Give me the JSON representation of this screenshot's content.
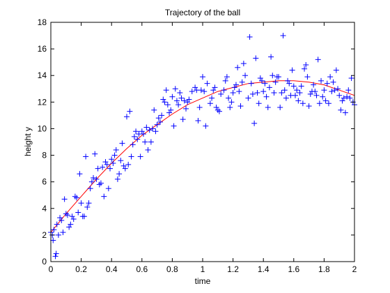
{
  "chart_data": {
    "type": "scatter",
    "title": "Trajectory of the ball",
    "xlabel": "time",
    "ylabel": "height y",
    "xlim": [
      0,
      2
    ],
    "ylim": [
      0,
      18
    ],
    "xticks": [
      "0",
      "0.2",
      "0.4",
      "0.6",
      "0.8",
      "1",
      "1.2",
      "1.4",
      "1.6",
      "1.8",
      "2"
    ],
    "yticks": [
      "0",
      "2",
      "4",
      "6",
      "8",
      "10",
      "12",
      "14",
      "16",
      "18"
    ],
    "grid": false,
    "legend": "none",
    "colors": {
      "scatter": "#0000ff",
      "curve": "#ff0000",
      "axes": "#000000",
      "background": "#ffffff"
    },
    "series": [
      {
        "kind": "scatter",
        "marker": "+",
        "color": "#0000ff",
        "points": [
          [
            0.0,
            2.2
          ],
          [
            0.01,
            2.0
          ],
          [
            0.015,
            1.6
          ],
          [
            0.02,
            2.4
          ],
          [
            0.03,
            0.4
          ],
          [
            0.035,
            0.6
          ],
          [
            0.04,
            2.8
          ],
          [
            0.05,
            2.0
          ],
          [
            0.06,
            3.3
          ],
          [
            0.07,
            3.1
          ],
          [
            0.08,
            2.2
          ],
          [
            0.09,
            4.7
          ],
          [
            0.1,
            3.6
          ],
          [
            0.11,
            3.5
          ],
          [
            0.12,
            2.6
          ],
          [
            0.13,
            2.8
          ],
          [
            0.14,
            3.4
          ],
          [
            0.15,
            3.2
          ],
          [
            0.16,
            4.9
          ],
          [
            0.17,
            4.8
          ],
          [
            0.18,
            3.7
          ],
          [
            0.19,
            6.6
          ],
          [
            0.2,
            4.4
          ],
          [
            0.21,
            3.4
          ],
          [
            0.22,
            3.4
          ],
          [
            0.23,
            7.9
          ],
          [
            0.24,
            4.1
          ],
          [
            0.25,
            4.4
          ],
          [
            0.26,
            5.5
          ],
          [
            0.27,
            6.0
          ],
          [
            0.28,
            6.3
          ],
          [
            0.29,
            8.1
          ],
          [
            0.3,
            6.2
          ],
          [
            0.31,
            7.0
          ],
          [
            0.32,
            5.8
          ],
          [
            0.33,
            5.9
          ],
          [
            0.34,
            7.1
          ],
          [
            0.35,
            4.9
          ],
          [
            0.36,
            7.5
          ],
          [
            0.37,
            7.3
          ],
          [
            0.38,
            5.5
          ],
          [
            0.39,
            7.0
          ],
          [
            0.4,
            7.7
          ],
          [
            0.41,
            7.4
          ],
          [
            0.42,
            8.0
          ],
          [
            0.43,
            8.4
          ],
          [
            0.44,
            6.2
          ],
          [
            0.45,
            6.6
          ],
          [
            0.46,
            7.6
          ],
          [
            0.47,
            8.9
          ],
          [
            0.48,
            7.2
          ],
          [
            0.49,
            7.0
          ],
          [
            0.5,
            10.9
          ],
          [
            0.51,
            7.3
          ],
          [
            0.52,
            11.3
          ],
          [
            0.53,
            7.9
          ],
          [
            0.54,
            8.8
          ],
          [
            0.55,
            9.4
          ],
          [
            0.56,
            9.8
          ],
          [
            0.57,
            9.2
          ],
          [
            0.58,
            9.6
          ],
          [
            0.59,
            7.9
          ],
          [
            0.6,
            9.8
          ],
          [
            0.61,
            9.6
          ],
          [
            0.62,
            9.0
          ],
          [
            0.63,
            10.1
          ],
          [
            0.64,
            8.4
          ],
          [
            0.65,
            9.9
          ],
          [
            0.66,
            9.0
          ],
          [
            0.67,
            10.0
          ],
          [
            0.68,
            11.4
          ],
          [
            0.69,
            9.8
          ],
          [
            0.7,
            10.3
          ],
          [
            0.71,
            10.8
          ],
          [
            0.72,
            10.5
          ],
          [
            0.73,
            11.0
          ],
          [
            0.74,
            12.2
          ],
          [
            0.75,
            12.0
          ],
          [
            0.76,
            12.9
          ],
          [
            0.77,
            11.8
          ],
          [
            0.78,
            11.2
          ],
          [
            0.79,
            11.4
          ],
          [
            0.8,
            12.4
          ],
          [
            0.81,
            10.2
          ],
          [
            0.82,
            13.0
          ],
          [
            0.83,
            12.1
          ],
          [
            0.84,
            11.8
          ],
          [
            0.85,
            12.7
          ],
          [
            0.86,
            12.3
          ],
          [
            0.87,
            10.7
          ],
          [
            0.88,
            12.1
          ],
          [
            0.89,
            11.5
          ],
          [
            0.9,
            12.0
          ],
          [
            0.91,
            12.2
          ],
          [
            0.93,
            12.8
          ],
          [
            0.95,
            13.1
          ],
          [
            0.96,
            12.9
          ],
          [
            0.97,
            10.6
          ],
          [
            0.98,
            11.6
          ],
          [
            0.99,
            12.9
          ],
          [
            1.0,
            13.9
          ],
          [
            1.01,
            12.8
          ],
          [
            1.02,
            10.2
          ],
          [
            1.03,
            13.4
          ],
          [
            1.05,
            11.9
          ],
          [
            1.06,
            12.3
          ],
          [
            1.07,
            12.9
          ],
          [
            1.08,
            13.1
          ],
          [
            1.09,
            11.6
          ],
          [
            1.1,
            11.4
          ],
          [
            1.11,
            11.3
          ],
          [
            1.12,
            12.6
          ],
          [
            1.14,
            12.9
          ],
          [
            1.15,
            13.6
          ],
          [
            1.16,
            13.9
          ],
          [
            1.17,
            12.3
          ],
          [
            1.18,
            11.6
          ],
          [
            1.19,
            12.0
          ],
          [
            1.2,
            12.7
          ],
          [
            1.21,
            13.1
          ],
          [
            1.22,
            13.3
          ],
          [
            1.23,
            14.6
          ],
          [
            1.24,
            12.8
          ],
          [
            1.25,
            11.7
          ],
          [
            1.26,
            13.5
          ],
          [
            1.27,
            14.9
          ],
          [
            1.28,
            14.0
          ],
          [
            1.3,
            12.3
          ],
          [
            1.31,
            16.9
          ],
          [
            1.32,
            13.4
          ],
          [
            1.33,
            12.6
          ],
          [
            1.34,
            10.4
          ],
          [
            1.35,
            15.3
          ],
          [
            1.36,
            12.7
          ],
          [
            1.37,
            11.9
          ],
          [
            1.38,
            13.8
          ],
          [
            1.39,
            13.6
          ],
          [
            1.4,
            12.8
          ],
          [
            1.41,
            13.4
          ],
          [
            1.42,
            12.4
          ],
          [
            1.43,
            11.6
          ],
          [
            1.44,
            13.1
          ],
          [
            1.45,
            15.4
          ],
          [
            1.46,
            14.0
          ],
          [
            1.47,
            12.7
          ],
          [
            1.48,
            13.5
          ],
          [
            1.49,
            13.9
          ],
          [
            1.5,
            13.9
          ],
          [
            1.51,
            11.6
          ],
          [
            1.52,
            12.7
          ],
          [
            1.53,
            17.0
          ],
          [
            1.54,
            12.9
          ],
          [
            1.55,
            12.3
          ],
          [
            1.56,
            13.6
          ],
          [
            1.57,
            13.4
          ],
          [
            1.58,
            12.5
          ],
          [
            1.59,
            14.4
          ],
          [
            1.6,
            13.2
          ],
          [
            1.61,
            12.5
          ],
          [
            1.62,
            12.9
          ],
          [
            1.63,
            12.1
          ],
          [
            1.64,
            12.7
          ],
          [
            1.65,
            13.2
          ],
          [
            1.66,
            11.9
          ],
          [
            1.67,
            14.5
          ],
          [
            1.68,
            14.8
          ],
          [
            1.69,
            13.9
          ],
          [
            1.7,
            11.7
          ],
          [
            1.71,
            12.6
          ],
          [
            1.72,
            12.8
          ],
          [
            1.73,
            13.3
          ],
          [
            1.74,
            12.8
          ],
          [
            1.75,
            12.5
          ],
          [
            1.76,
            15.2
          ],
          [
            1.77,
            11.9
          ],
          [
            1.78,
            13.6
          ],
          [
            1.79,
            12.4
          ],
          [
            1.8,
            12.9
          ],
          [
            1.81,
            12.1
          ],
          [
            1.82,
            13.4
          ],
          [
            1.83,
            11.9
          ],
          [
            1.84,
            13.9
          ],
          [
            1.85,
            12.8
          ],
          [
            1.86,
            13.5
          ],
          [
            1.87,
            12.9
          ],
          [
            1.88,
            14.4
          ],
          [
            1.89,
            13.0
          ],
          [
            1.9,
            12.5
          ],
          [
            1.91,
            11.4
          ],
          [
            1.92,
            12.1
          ],
          [
            1.93,
            12.3
          ],
          [
            1.94,
            11.2
          ],
          [
            1.95,
            12.4
          ],
          [
            1.96,
            12.9
          ],
          [
            1.97,
            12.3
          ],
          [
            1.98,
            13.8
          ],
          [
            1.99,
            12.0
          ],
          [
            2.0,
            11.8
          ]
        ]
      },
      {
        "kind": "line",
        "color": "#ff0000",
        "x": [
          0,
          0.1,
          0.2,
          0.3,
          0.4,
          0.5,
          0.6,
          0.7,
          0.8,
          0.9,
          1.0,
          1.1,
          1.2,
          1.3,
          1.4,
          1.5,
          1.6,
          1.7,
          1.8,
          1.9,
          2.0
        ],
        "y": [
          2.2,
          3.6,
          4.9,
          6.2,
          7.4,
          8.5,
          9.5,
          10.3,
          11.1,
          11.8,
          12.3,
          12.8,
          13.1,
          13.4,
          13.5,
          13.6,
          13.6,
          13.5,
          13.3,
          12.9,
          12.5
        ]
      }
    ]
  }
}
